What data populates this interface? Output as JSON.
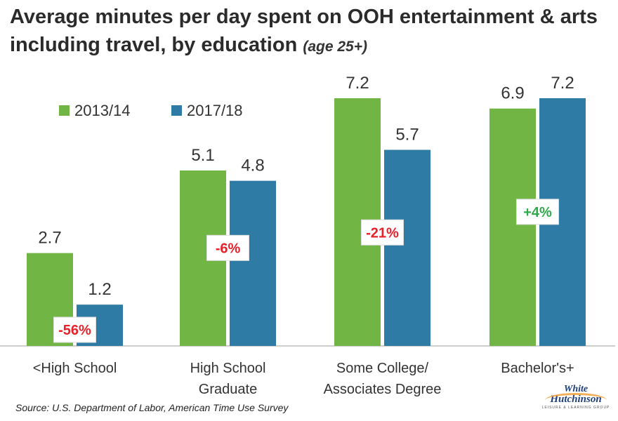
{
  "title": "Average minutes per day spent on OOH entertainment & arts including travel, by education",
  "subtitle": "(age 25+)",
  "source": "Source: U.S. Department of Labor, American Time Use Survey",
  "logo": {
    "line1": "White",
    "line2": "Hutchinson",
    "tagline": "LEISURE & LEARNING GROUP"
  },
  "colors": {
    "series1": "#71b544",
    "series2": "#2e7ca6",
    "negative": "#e8202a",
    "positive": "#2eaa4a"
  },
  "chart_data": {
    "type": "bar",
    "categories": [
      "<High School",
      "High School Graduate",
      "Some College/ Associates Degree",
      "Bachelor's+"
    ],
    "category_lines": [
      [
        "<High School"
      ],
      [
        "High School",
        "Graduate"
      ],
      [
        "Some College/",
        "Associates Degree"
      ],
      [
        "Bachelor's+"
      ]
    ],
    "series": [
      {
        "name": "2013/14",
        "values": [
          2.7,
          5.1,
          7.2,
          6.9
        ],
        "value_labels": [
          "2.7",
          "5.1",
          "7.2",
          "6.9"
        ]
      },
      {
        "name": "2017/18",
        "values": [
          1.2,
          4.8,
          5.7,
          7.2
        ],
        "value_labels": [
          "1.2",
          "4.8",
          "5.7",
          "7.2"
        ]
      }
    ],
    "changes": [
      "-56%",
      "-6%",
      "-21%",
      "+4%"
    ],
    "change_signs": [
      "negative",
      "negative",
      "negative",
      "positive"
    ],
    "ylim": [
      0,
      7.2
    ],
    "grid": false,
    "legend_position": "top-left"
  }
}
